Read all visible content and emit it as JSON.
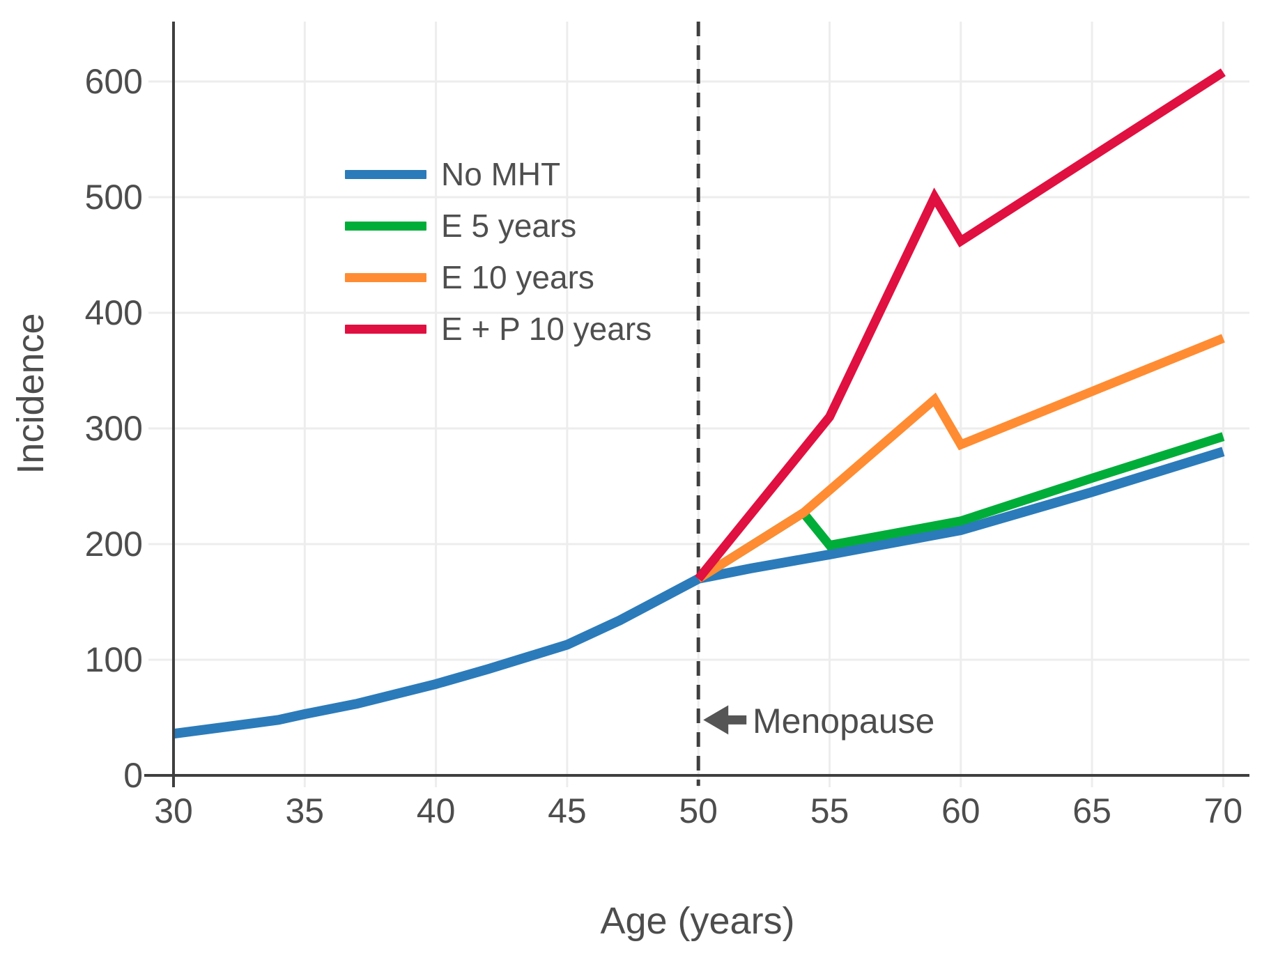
{
  "chart_data": {
    "type": "line",
    "title": "",
    "xlabel": "Age (years)",
    "ylabel": "Incidence",
    "xlim": [
      30,
      71
    ],
    "ylim": [
      0,
      652
    ],
    "xticks": [
      30,
      35,
      40,
      45,
      50,
      55,
      60,
      65,
      70
    ],
    "yticks": [
      0,
      100,
      200,
      300,
      400,
      500,
      600
    ],
    "grid": true,
    "legend_position": "upper-left-inside",
    "menopause_line_x": 50,
    "annotation": {
      "text": "Menopause",
      "arrow_direction": "left",
      "points_to_age": 50,
      "at_value": 48
    },
    "series": [
      {
        "name": "No MHT",
        "color": "#2b7bba",
        "points": [
          [
            30,
            36
          ],
          [
            32,
            42
          ],
          [
            34,
            48
          ],
          [
            35,
            53
          ],
          [
            37,
            62
          ],
          [
            40,
            79
          ],
          [
            42,
            92
          ],
          [
            45,
            113
          ],
          [
            47,
            134
          ],
          [
            48,
            146
          ],
          [
            50,
            170
          ],
          [
            52,
            179
          ],
          [
            55,
            191
          ],
          [
            60,
            212
          ],
          [
            65,
            245
          ],
          [
            70,
            280
          ]
        ]
      },
      {
        "name": "E 5 years",
        "color": "#00ad39",
        "points": [
          [
            50,
            170
          ],
          [
            54,
            227
          ],
          [
            55,
            199
          ],
          [
            60,
            220
          ],
          [
            65,
            257
          ],
          [
            70,
            293
          ]
        ]
      },
      {
        "name": "E 10 years",
        "color": "#ff8c32",
        "points": [
          [
            50,
            170
          ],
          [
            54,
            227
          ],
          [
            59,
            325
          ],
          [
            60,
            286
          ],
          [
            65,
            332
          ],
          [
            70,
            378
          ]
        ]
      },
      {
        "name": "E + P 10 years",
        "color": "#e01040",
        "points": [
          [
            50,
            170
          ],
          [
            55,
            310
          ],
          [
            59,
            500
          ],
          [
            60,
            462
          ],
          [
            65,
            535
          ],
          [
            70,
            608
          ]
        ]
      }
    ],
    "colors": {
      "grid": "#ededed",
      "axis": "#3f3f3f",
      "dashed_line": "#3f3f3f",
      "tick_text": "#4d4d4d",
      "arrow": "#555555"
    }
  }
}
